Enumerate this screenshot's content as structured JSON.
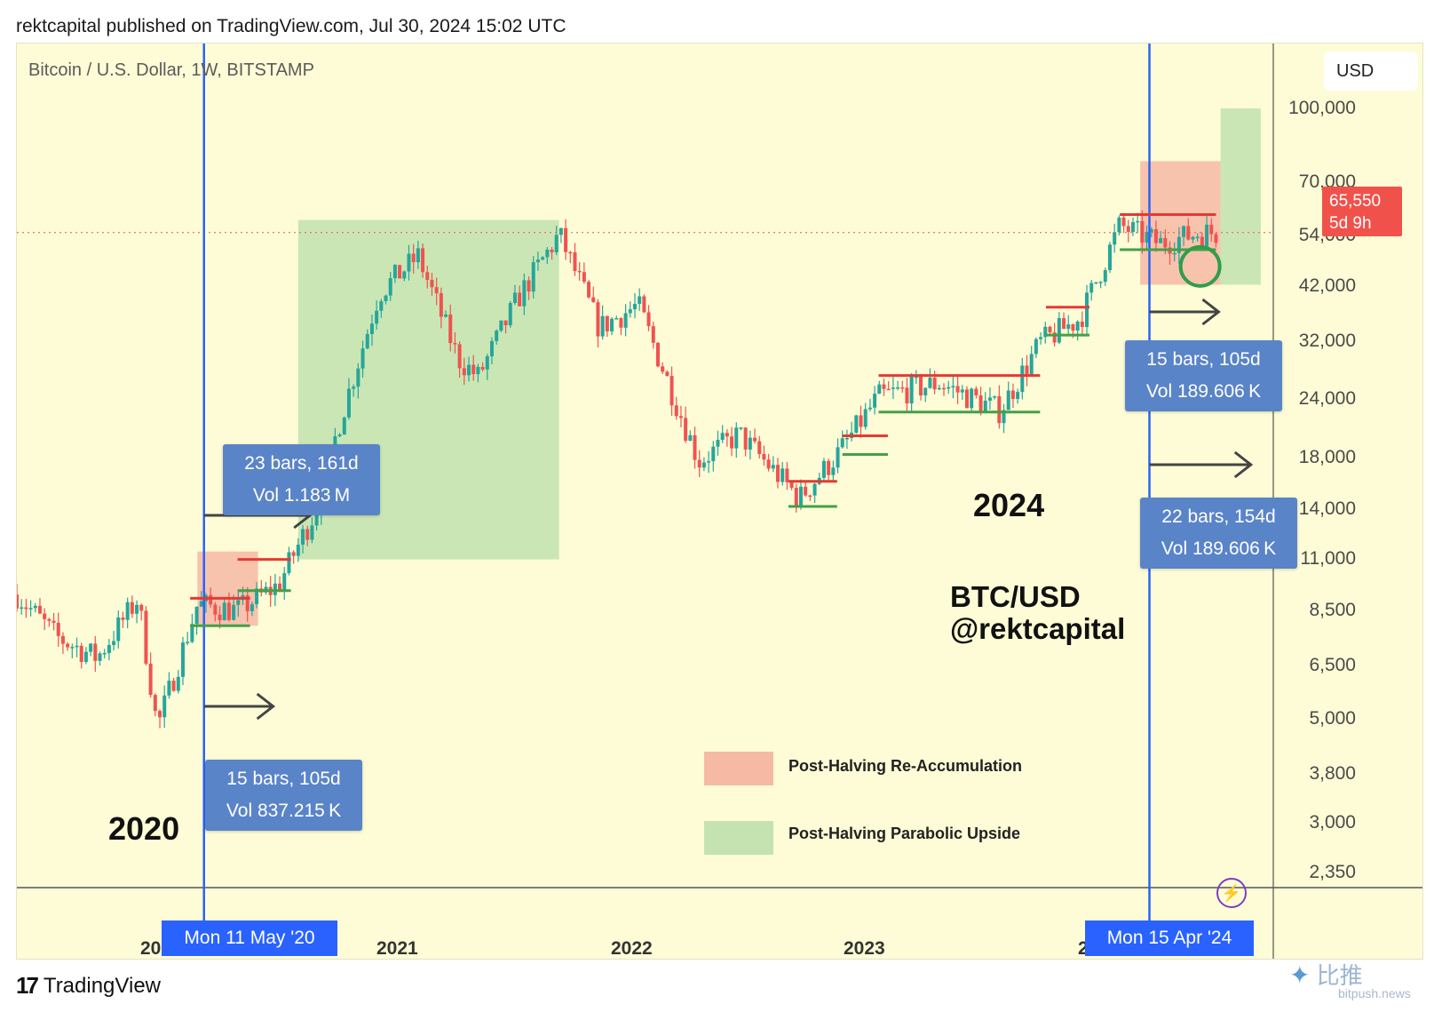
{
  "header": {
    "text": "rektcapital published on TradingView.com, Jul 30, 2024 15:02 UTC"
  },
  "symbol": {
    "text": "Bitcoin / U.S. Dollar, 1W, BITSTAMP"
  },
  "currency": {
    "label": "USD"
  },
  "last_price": {
    "value": "65,550",
    "countdown": "5d 9h"
  },
  "price_axis": [
    "100,000",
    "70,000",
    "54,000",
    "42,000",
    "32,000",
    "24,000",
    "18,000",
    "14,000",
    "11,000",
    "8,500",
    "6,500",
    "5,000",
    "3,800",
    "3,000",
    "2,350"
  ],
  "time_axis": {
    "years": [
      "2021",
      "2022",
      "2023"
    ],
    "partial_left": "20",
    "partial_right": "2"
  },
  "date_tags": {
    "left": "Mon 11 May '20",
    "right": "Mon 15 Apr '24"
  },
  "measures": [
    {
      "line1": "23 bars, 161d",
      "line2": "Vol 1.183 M"
    },
    {
      "line1": "15 bars, 105d",
      "line2": "Vol 837.215 K"
    },
    {
      "line1": "15 bars, 105d",
      "line2": "Vol 189.606 K"
    },
    {
      "line1": "22 bars, 154d",
      "line2": "Vol 189.606 K"
    }
  ],
  "annotations": {
    "year_2020": "2020",
    "year_2024": "2024",
    "pair": "BTC/USD",
    "handle": "@rektcapital"
  },
  "legend": [
    {
      "label": "Post-Halving Re-Accumulation",
      "color": "#f6b9a4"
    },
    {
      "label": "Post-Halving Parabolic Upside",
      "color": "#c4e3b1"
    }
  ],
  "branding": {
    "tradingview": "TradingView",
    "watermark": "比推",
    "watermark_sub": "bitpush.news"
  },
  "colors": {
    "up": "#26a69a",
    "down": "#ef5350",
    "halving_line": "#2962ff",
    "background": "#fdfcd6"
  },
  "chart_data": {
    "type": "candlestick",
    "title": "Bitcoin / U.S. Dollar, 1W, BITSTAMP",
    "y_scale": "log",
    "ylim": [
      2200,
      125000
    ],
    "x_range": [
      "2019-08",
      "2024-10"
    ],
    "halving_dates": [
      "2020-05-11",
      "2024-04-15"
    ],
    "approx_close_path": [
      [
        "2019-08",
        10000
      ],
      [
        "2019-10",
        8000
      ],
      [
        "2019-12",
        7200
      ],
      [
        "2020-02",
        9800
      ],
      [
        "2020-03",
        5000
      ],
      [
        "2020-05",
        9500
      ],
      [
        "2020-07",
        9200
      ],
      [
        "2020-09",
        10500
      ],
      [
        "2020-11",
        16000
      ],
      [
        "2020-12",
        24000
      ],
      [
        "2021-02",
        48000
      ],
      [
        "2021-04",
        58000
      ],
      [
        "2021-06",
        34000
      ],
      [
        "2021-07",
        31000
      ],
      [
        "2021-09",
        47000
      ],
      [
        "2021-11",
        65000
      ],
      [
        "2022-01",
        40000
      ],
      [
        "2022-03",
        45000
      ],
      [
        "2022-06",
        20000
      ],
      [
        "2022-08",
        23000
      ],
      [
        "2022-11",
        16500
      ],
      [
        "2023-01",
        21000
      ],
      [
        "2023-03",
        28000
      ],
      [
        "2023-06",
        30000
      ],
      [
        "2023-09",
        26000
      ],
      [
        "2023-11",
        37000
      ],
      [
        "2024-01",
        42000
      ],
      [
        "2024-03",
        68000
      ],
      [
        "2024-05",
        62000
      ],
      [
        "2024-07",
        65550
      ]
    ],
    "zones": [
      {
        "type": "re-accumulation",
        "from": "2020-05",
        "to": "2020-08",
        "low": 8500,
        "high": 12500
      },
      {
        "type": "parabolic-upside",
        "from": "2020-10",
        "to": "2021-11",
        "low": 12000,
        "high": 70000
      },
      {
        "type": "re-accumulation",
        "from": "2024-04",
        "to": "2024-08",
        "low": 50000,
        "high": 95000
      },
      {
        "type": "parabolic-upside",
        "from": "2024-08",
        "to": "2024-10",
        "low": 50000,
        "high": 125000
      }
    ]
  }
}
